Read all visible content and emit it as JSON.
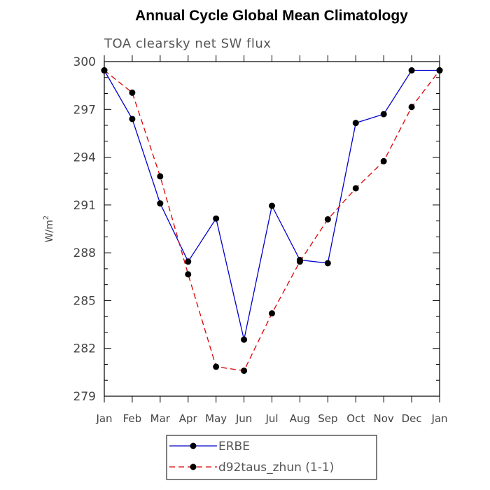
{
  "chart_data": {
    "type": "line",
    "title": "Annual Cycle Global Mean Climatology",
    "subtitle": "TOA clearsky net SW flux",
    "xlabel": "",
    "ylabel_main": "W/m",
    "ylabel_sup": "2",
    "categories": [
      "Jan",
      "Feb",
      "Mar",
      "Apr",
      "May",
      "Jun",
      "Jul",
      "Aug",
      "Sep",
      "Oct",
      "Nov",
      "Dec",
      "Jan"
    ],
    "ylim": [
      279,
      300
    ],
    "yticks": [
      279,
      282,
      285,
      288,
      291,
      294,
      297,
      300
    ],
    "series": [
      {
        "name": "ERBE",
        "color": "#0000cc",
        "dash": "solid",
        "values": [
          299.45,
          296.4,
          291.1,
          287.45,
          290.15,
          282.55,
          290.95,
          287.55,
          287.35,
          296.15,
          296.7,
          299.45,
          299.45
        ]
      },
      {
        "name": "d92taus_zhun (1-1)",
        "color": "#dd0000",
        "dash": "dashed",
        "values": [
          299.45,
          298.05,
          292.8,
          286.65,
          280.85,
          280.6,
          284.2,
          287.45,
          290.1,
          292.05,
          293.75,
          297.15,
          299.45
        ]
      }
    ]
  }
}
